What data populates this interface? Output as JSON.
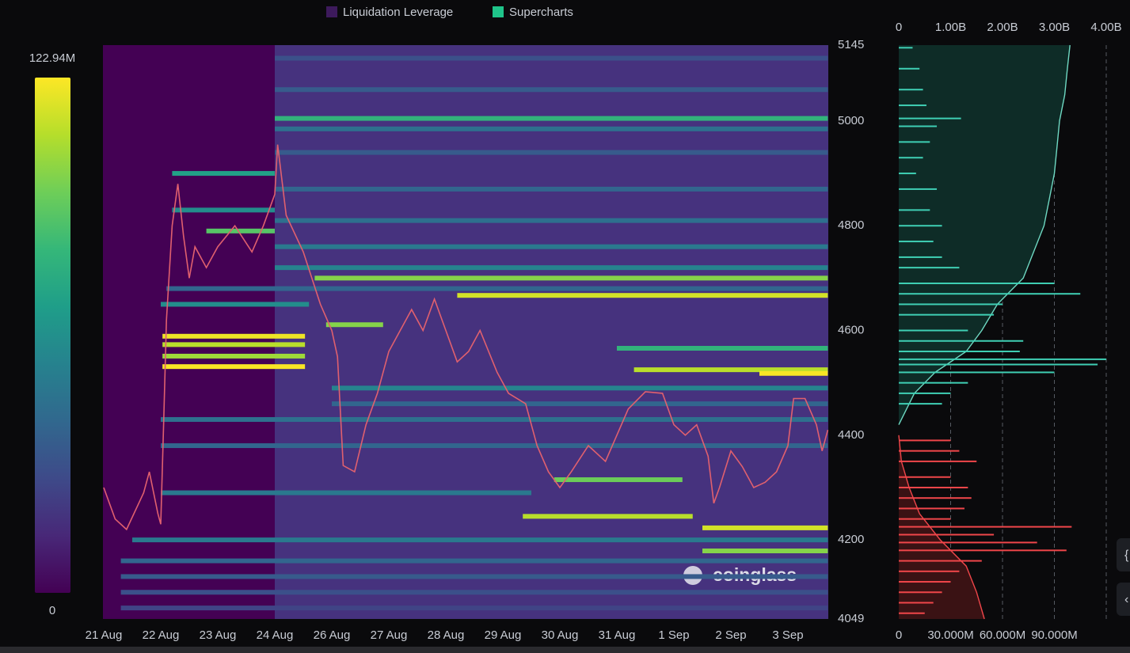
{
  "chart_data": [
    {
      "type": "heatmap",
      "legend": [
        {
          "name": "Liquidation Leverage",
          "color": "#3d1a5c"
        },
        {
          "name": "Supercharts",
          "color": "#1fc48a"
        }
      ],
      "colorscale": [
        "#440154",
        "#482878",
        "#3e4a89",
        "#31688e",
        "#26828e",
        "#1f9e89",
        "#35b779",
        "#6ece58",
        "#b5de2b",
        "#fde725"
      ],
      "colorbar": {
        "lim": [
          0,
          122.94
        ],
        "ticks": [
          0,
          {
            "value": 122.94,
            "label": "122.94M"
          }
        ]
      },
      "xlim": [
        0,
        12.7
      ],
      "xticks": [
        {
          "value": 0,
          "label": "21 Aug"
        },
        {
          "value": 1,
          "label": "22 Aug"
        },
        {
          "value": 2,
          "label": "23 Aug"
        },
        {
          "value": 3,
          "label": "24 Aug"
        },
        {
          "value": 4,
          "label": "26 Aug"
        },
        {
          "value": 5,
          "label": "27 Aug"
        },
        {
          "value": 6,
          "label": "28 Aug"
        },
        {
          "value": 7,
          "label": "29 Aug"
        },
        {
          "value": 8,
          "label": "30 Aug"
        },
        {
          "value": 9,
          "label": "31 Aug"
        },
        {
          "value": 10,
          "label": "1 Sep"
        },
        {
          "value": 11,
          "label": "2 Sep"
        },
        {
          "value": 12,
          "label": "3 Sep"
        }
      ],
      "ylim": [
        4049,
        5145
      ],
      "yticks": [
        4049,
        4200,
        4400,
        4600,
        4800,
        5000,
        5145
      ],
      "bands": [
        {
          "price": 5120,
          "start": 3.0,
          "end": 12.7,
          "value": 30
        },
        {
          "price": 5060,
          "start": 3.0,
          "end": 12.7,
          "value": 35
        },
        {
          "price": 5005,
          "start": 3.0,
          "end": 12.7,
          "value": 80
        },
        {
          "price": 4985,
          "start": 3.0,
          "end": 12.7,
          "value": 45
        },
        {
          "price": 4940,
          "start": 3.0,
          "end": 12.7,
          "value": 35
        },
        {
          "price": 4900,
          "start": 1.2,
          "end": 3.0,
          "value": 70
        },
        {
          "price": 4870,
          "start": 3.0,
          "end": 12.7,
          "value": 40
        },
        {
          "price": 4830,
          "start": 1.2,
          "end": 3.0,
          "value": 60
        },
        {
          "price": 4810,
          "start": 3.0,
          "end": 12.7,
          "value": 45
        },
        {
          "price": 4790,
          "start": 1.8,
          "end": 3.0,
          "value": 90
        },
        {
          "price": 4760,
          "start": 3.0,
          "end": 12.7,
          "value": 50
        },
        {
          "price": 4720,
          "start": 3.0,
          "end": 12.7,
          "value": 55
        },
        {
          "price": 4700,
          "start": 3.7,
          "end": 12.7,
          "value": 100
        },
        {
          "price": 4680,
          "start": 1.1,
          "end": 12.7,
          "value": 40
        },
        {
          "price": 4667,
          "start": 6.2,
          "end": 12.7,
          "value": 115
        },
        {
          "price": 4650,
          "start": 1.0,
          "end": 3.6,
          "value": 60
        },
        {
          "price": 4611,
          "start": 3.9,
          "end": 4.9,
          "value": 100
        },
        {
          "price": 4589,
          "start": 1.03,
          "end": 3.53,
          "value": 120
        },
        {
          "price": 4573,
          "start": 1.03,
          "end": 3.53,
          "value": 110
        },
        {
          "price": 4566,
          "start": 9.0,
          "end": 12.7,
          "value": 80
        },
        {
          "price": 4551,
          "start": 1.03,
          "end": 3.53,
          "value": 105
        },
        {
          "price": 4531,
          "start": 1.03,
          "end": 3.53,
          "value": 122
        },
        {
          "price": 4525,
          "start": 9.3,
          "end": 12.7,
          "value": 110
        },
        {
          "price": 4518,
          "start": 11.5,
          "end": 12.7,
          "value": 122
        },
        {
          "price": 4490,
          "start": 4.0,
          "end": 12.7,
          "value": 55
        },
        {
          "price": 4460,
          "start": 4.0,
          "end": 12.7,
          "value": 40
        },
        {
          "price": 4430,
          "start": 1.0,
          "end": 12.7,
          "value": 45
        },
        {
          "price": 4380,
          "start": 1.0,
          "end": 12.7,
          "value": 40
        },
        {
          "price": 4315,
          "start": 7.9,
          "end": 10.15,
          "value": 95
        },
        {
          "price": 4290,
          "start": 1.0,
          "end": 7.5,
          "value": 50
        },
        {
          "price": 4245,
          "start": 7.35,
          "end": 10.33,
          "value": 110
        },
        {
          "price": 4223,
          "start": 10.5,
          "end": 12.7,
          "value": 115
        },
        {
          "price": 4200,
          "start": 0.5,
          "end": 12.7,
          "value": 50
        },
        {
          "price": 4179,
          "start": 10.5,
          "end": 12.7,
          "value": 100
        },
        {
          "price": 4160,
          "start": 0.3,
          "end": 12.7,
          "value": 40
        },
        {
          "price": 4130,
          "start": 0.3,
          "end": 12.7,
          "value": 35
        },
        {
          "price": 4100,
          "start": 0.3,
          "end": 12.7,
          "value": 30
        },
        {
          "price": 4070,
          "start": 0.3,
          "end": 12.7,
          "value": 25
        }
      ],
      "price": {
        "color": "#e0606e",
        "x": [
          0,
          0.2,
          0.4,
          0.7,
          0.8,
          0.95,
          1.0,
          1.05,
          1.1,
          1.2,
          1.3,
          1.4,
          1.5,
          1.6,
          1.8,
          2.0,
          2.3,
          2.6,
          2.8,
          3.0,
          3.05,
          3.2,
          3.5,
          3.8,
          4.0,
          4.1,
          4.2,
          4.4,
          4.6,
          4.8,
          5.0,
          5.2,
          5.4,
          5.6,
          5.8,
          6.0,
          6.2,
          6.4,
          6.6,
          6.9,
          7.1,
          7.4,
          7.6,
          7.8,
          8.0,
          8.2,
          8.5,
          8.8,
          9.0,
          9.2,
          9.5,
          9.8,
          10.0,
          10.2,
          10.4,
          10.6,
          10.7,
          10.8,
          11.0,
          11.2,
          11.4,
          11.6,
          11.8,
          12.0,
          12.1,
          12.3,
          12.5,
          12.6,
          12.7
        ],
        "values": [
          4300,
          4240,
          4220,
          4290,
          4330,
          4250,
          4230,
          4420,
          4620,
          4800,
          4880,
          4780,
          4700,
          4760,
          4720,
          4760,
          4800,
          4750,
          4800,
          4860,
          4955,
          4820,
          4750,
          4650,
          4600,
          4550,
          4342,
          4330,
          4420,
          4480,
          4560,
          4600,
          4640,
          4600,
          4660,
          4600,
          4540,
          4560,
          4600,
          4520,
          4480,
          4460,
          4380,
          4330,
          4300,
          4330,
          4380,
          4350,
          4400,
          4450,
          4483,
          4480,
          4420,
          4400,
          4420,
          4360,
          4270,
          4300,
          4370,
          4340,
          4300,
          4310,
          4330,
          4380,
          4470,
          4470,
          4420,
          4370,
          4410
        ]
      },
      "watermark": "coinglass"
    },
    {
      "type": "hbar",
      "xlim": [
        0,
        120
      ],
      "xticks": [
        0,
        {
          "value": 30,
          "label": "30.000M"
        },
        {
          "value": 60,
          "label": "60.000M"
        },
        {
          "value": 90,
          "label": "90.000M"
        }
      ],
      "x2lim": [
        0,
        4
      ],
      "x2ticks": [
        0,
        {
          "value": 1,
          "label": "1.00B"
        },
        {
          "value": 2,
          "label": "2.00B"
        },
        {
          "value": 3,
          "label": "3.00B"
        },
        {
          "value": 4,
          "label": "4.00B"
        }
      ],
      "series": [
        {
          "color": "#3fcfb4",
          "y": [
            5140,
            5100,
            5060,
            5030,
            5005,
            4990,
            4960,
            4930,
            4900,
            4870,
            4830,
            4800,
            4770,
            4740,
            4720,
            4690,
            4670,
            4650,
            4630,
            4600,
            4580,
            4560,
            4545,
            4535,
            4520,
            4500,
            4480,
            4460
          ],
          "values": [
            8,
            12,
            14,
            16,
            36,
            22,
            18,
            14,
            10,
            22,
            18,
            25,
            20,
            25,
            35,
            90,
            105,
            60,
            55,
            40,
            72,
            70,
            120,
            115,
            90,
            40,
            30,
            25
          ]
        },
        {
          "color": "#f0464a",
          "y": [
            4390,
            4370,
            4350,
            4320,
            4300,
            4280,
            4260,
            4240,
            4225,
            4210,
            4195,
            4180,
            4160,
            4140,
            4120,
            4100,
            4080,
            4060
          ],
          "values": [
            30,
            35,
            45,
            30,
            40,
            42,
            38,
            30,
            100,
            55,
            80,
            97,
            48,
            35,
            30,
            25,
            20,
            15
          ]
        }
      ],
      "cumulative": [
        {
          "color": "#6fd9c3",
          "fill": "#0e2c27",
          "axis": "x2",
          "y": [
            4420,
            4480,
            4520,
            4560,
            4600,
            4650,
            4700,
            4750,
            4800,
            4850,
            4900,
            4950,
            5000,
            5050,
            5100,
            5145
          ],
          "values": [
            0,
            0.3,
            0.7,
            1.3,
            1.6,
            1.9,
            2.4,
            2.6,
            2.8,
            2.9,
            3.0,
            3.05,
            3.1,
            3.2,
            3.25,
            3.3
          ]
        },
        {
          "color": "#f0464a",
          "fill": "#3a1214",
          "axis": "x2",
          "y": [
            4400,
            4350,
            4300,
            4250,
            4200,
            4150,
            4100,
            4049
          ],
          "values": [
            0,
            0.05,
            0.2,
            0.4,
            0.8,
            1.3,
            1.5,
            1.65
          ]
        }
      ]
    }
  ]
}
